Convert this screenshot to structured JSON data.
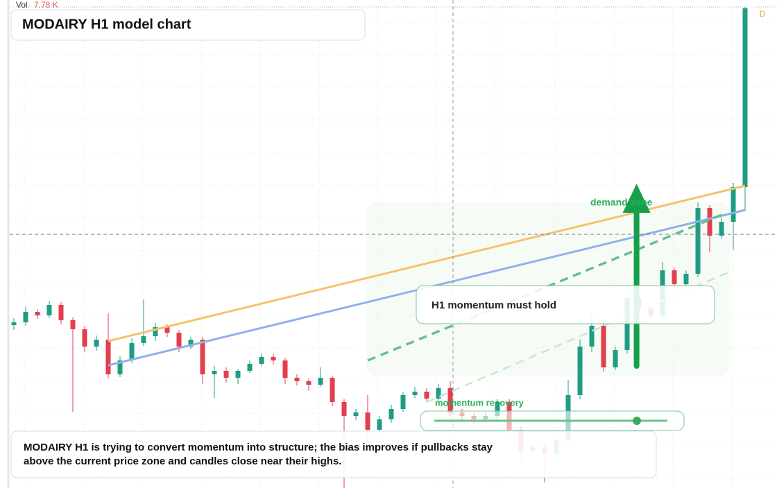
{
  "chart_data": {
    "type": "candlestick",
    "title": "MODAIRY H1 model chart",
    "volume_label": "Vol",
    "volume_value": "7.78 K",
    "badge": "D",
    "ylim": [
      0,
      704
    ],
    "up_color": "#1f9c84",
    "down_color": "#e33e4e",
    "open": [
      235,
      239,
      254,
      249,
      264,
      242,
      229,
      204,
      214,
      164,
      184,
      209,
      219,
      232,
      224,
      204,
      214,
      164,
      169,
      159,
      169,
      179,
      189,
      184,
      159,
      154,
      149,
      159,
      124,
      104,
      109,
      84,
      99,
      114,
      134,
      139,
      129,
      144,
      109,
      104,
      99,
      104,
      124,
      84,
      54,
      59,
      49,
      69,
      134,
      204,
      234,
      174,
      199,
      274,
      259,
      249,
      314,
      294,
      309,
      404,
      364,
      384,
      434
    ],
    "high": [
      245,
      262,
      258,
      270,
      268,
      246,
      234,
      220,
      252,
      190,
      216,
      272,
      238,
      236,
      228,
      218,
      218,
      176,
      174,
      172,
      184,
      194,
      194,
      188,
      164,
      158,
      174,
      162,
      128,
      114,
      134,
      104,
      120,
      138,
      146,
      144,
      150,
      154,
      114,
      108,
      110,
      128,
      128,
      88,
      64,
      64,
      74,
      156,
      214,
      250,
      238,
      204,
      280,
      296,
      264,
      326,
      318,
      314,
      412,
      408,
      390,
      440,
      694
    ],
    "low": [
      228,
      234,
      244,
      245,
      236,
      110,
      196,
      198,
      158,
      160,
      180,
      205,
      212,
      218,
      196,
      200,
      150,
      130,
      152,
      150,
      166,
      176,
      178,
      150,
      148,
      140,
      146,
      118,
      0,
      98,
      60,
      78,
      94,
      110,
      130,
      124,
      126,
      104,
      96,
      92,
      94,
      98,
      78,
      40,
      48,
      8,
      44,
      64,
      128,
      196,
      168,
      170,
      194,
      236,
      244,
      244,
      288,
      290,
      304,
      340,
      360,
      344,
      400
    ],
    "close": [
      239,
      254,
      249,
      264,
      242,
      229,
      204,
      214,
      164,
      184,
      209,
      219,
      232,
      224,
      204,
      214,
      164,
      169,
      159,
      169,
      179,
      189,
      184,
      159,
      154,
      149,
      159,
      124,
      104,
      109,
      84,
      99,
      114,
      134,
      139,
      129,
      144,
      109,
      104,
      99,
      104,
      124,
      84,
      54,
      59,
      49,
      69,
      134,
      204,
      234,
      174,
      199,
      274,
      259,
      249,
      314,
      294,
      309,
      404,
      364,
      384,
      434,
      692
    ],
    "trendlines": [
      {
        "color": "#f5c26b",
        "from": [
          8,
          212
        ],
        "to": [
          62,
          436
        ]
      },
      {
        "color": "#8fb0ea",
        "from": [
          8,
          177
        ],
        "to": [
          62,
          401
        ]
      },
      {
        "color": "#66c08a",
        "from": [
          30,
          184
        ],
        "to": [
          60,
          394
        ]
      },
      {
        "color": "#c4e8cf",
        "from": [
          35,
          124
        ],
        "to": [
          61,
          314
        ]
      }
    ],
    "arrow": {
      "color": "#15a049",
      "from": [
        52.8,
        176
      ],
      "to": [
        52.8,
        439
      ]
    },
    "annotations": {
      "zone": "demand zone",
      "hold": "H1 momentum must hold",
      "recovery": "momentum recovery"
    },
    "caption": "MODAIRY H1 is trying to convert momentum into structure; the bias improves if pullbacks stay above the current price zone and candles close near their highs."
  }
}
